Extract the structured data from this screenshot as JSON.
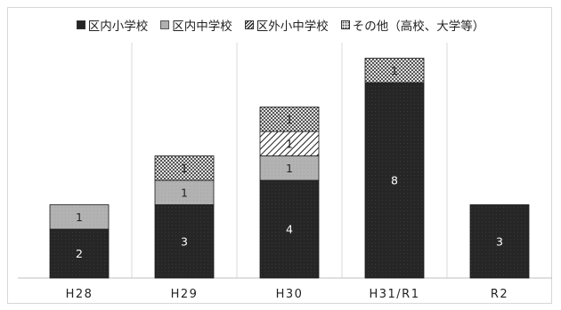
{
  "chart_data": {
    "type": "bar",
    "stacked": true,
    "title": "",
    "xlabel": "",
    "ylabel": "",
    "categories": [
      "H28",
      "H29",
      "H30",
      "H31/R1",
      "R2"
    ],
    "series": [
      {
        "name": "区内小学校",
        "values": [
          2,
          3,
          4,
          8,
          3
        ]
      },
      {
        "name": "区内中学校",
        "values": [
          1,
          1,
          1,
          0,
          0
        ]
      },
      {
        "name": "区外小中学校",
        "values": [
          0,
          0,
          1,
          0,
          0
        ]
      },
      {
        "name": "その他（高校、大学等）",
        "values": [
          0,
          1,
          1,
          1,
          0
        ]
      }
    ],
    "ylim": [
      0,
      9.2
    ],
    "grid": false,
    "legend": "top"
  }
}
